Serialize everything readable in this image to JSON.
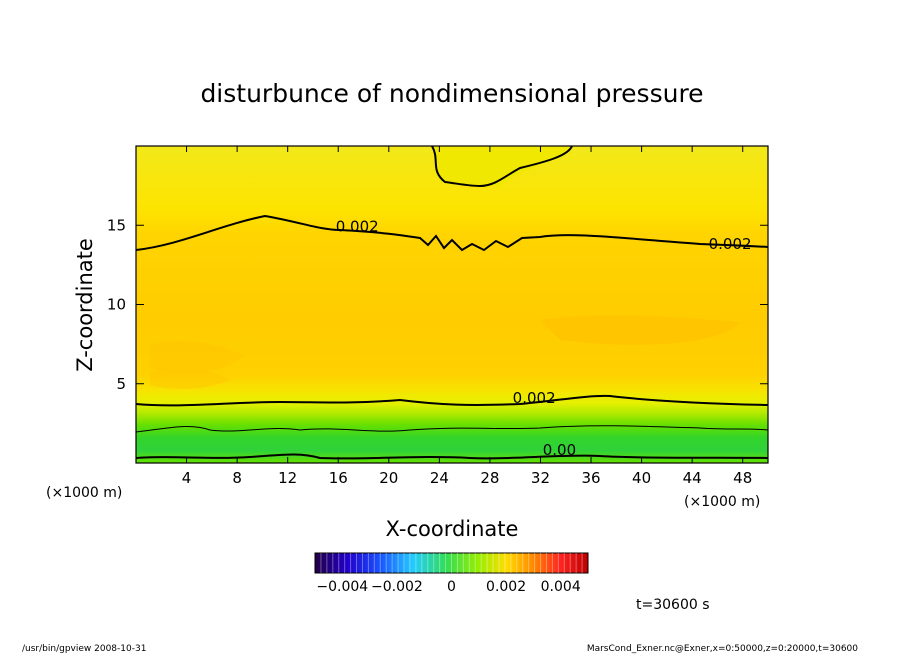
{
  "chart_data": {
    "type": "heatmap",
    "title": "disturbunce of nondimensional pressure",
    "xlabel": "X-coordinate",
    "ylabel": "Z-coordinate",
    "x_unit": "(×1000 m)",
    "x_ticks": [
      4,
      8,
      12,
      16,
      20,
      24,
      28,
      32,
      36,
      40,
      44,
      48
    ],
    "y_ticks": [
      5,
      10,
      15
    ],
    "xlim": [
      0,
      50
    ],
    "ylim": [
      0,
      20
    ],
    "colorbar": {
      "tick_labels": [
        "−0.004",
        "−0.002",
        "0",
        "0.002",
        "0.004"
      ],
      "ticks": [
        -0.004,
        -0.002,
        0,
        0.002,
        0.004
      ],
      "range": [
        -0.005,
        0.005
      ]
    },
    "contour_labels": [
      {
        "text": "0.002",
        "x": 17.5,
        "z": 14.6
      },
      {
        "text": "0.002",
        "x": 47,
        "z": 13.5
      },
      {
        "text": "0.002",
        "x": 31.5,
        "z": 3.8
      },
      {
        "text": "0.00",
        "x": 33.5,
        "z": 0.5
      }
    ],
    "fields": {
      "upper_band": {
        "z": [
          14,
          20
        ],
        "value": 0.0023
      },
      "middle_band": {
        "z": [
          5,
          14
        ],
        "value": 0.0027
      },
      "lower_band": {
        "z": [
          3.5,
          5
        ],
        "value": 0.0022
      },
      "surface_band": {
        "z": [
          0,
          3.5
        ],
        "value": 0.0008
      }
    }
  },
  "time_label": "t=30600 s",
  "footer": {
    "left": "/usr/bin/gpview   2008-10-31",
    "right": "MarsCond_Exner.nc@Exner,x=0:50000,z=0:20000,t=30600"
  }
}
